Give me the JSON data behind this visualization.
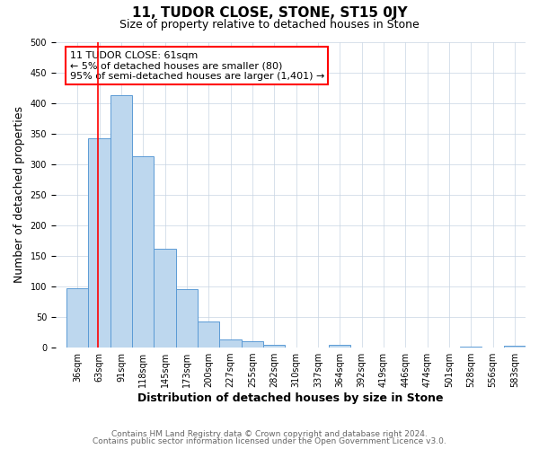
{
  "title": "11, TUDOR CLOSE, STONE, ST15 0JY",
  "subtitle": "Size of property relative to detached houses in Stone",
  "xlabel": "Distribution of detached houses by size in Stone",
  "ylabel": "Number of detached properties",
  "bar_values": [
    97,
    342,
    412,
    313,
    162,
    95,
    43,
    14,
    10,
    5,
    0,
    0,
    5,
    0,
    0,
    0,
    0,
    0,
    2,
    0,
    3
  ],
  "bar_labels": [
    "36sqm",
    "63sqm",
    "91sqm",
    "118sqm",
    "145sqm",
    "173sqm",
    "200sqm",
    "227sqm",
    "255sqm",
    "282sqm",
    "310sqm",
    "337sqm",
    "364sqm",
    "392sqm",
    "419sqm",
    "446sqm",
    "474sqm",
    "501sqm",
    "528sqm",
    "556sqm",
    "583sqm"
  ],
  "bar_color": "#bdd7ee",
  "bar_edge_color": "#5b9bd5",
  "property_line_x": 61,
  "property_line_color": "#ff0000",
  "annotation_text": "11 TUDOR CLOSE: 61sqm\n← 5% of detached houses are smaller (80)\n95% of semi-detached houses are larger (1,401) →",
  "annotation_box_color": "#ffffff",
  "annotation_box_edge": "#ff0000",
  "ylim": [
    0,
    500
  ],
  "yticks": [
    0,
    50,
    100,
    150,
    200,
    250,
    300,
    350,
    400,
    450,
    500
  ],
  "grid_color": "#c8d4e3",
  "bg_color": "#ffffff",
  "footer_line1": "Contains HM Land Registry data © Crown copyright and database right 2024.",
  "footer_line2": "Contains public sector information licensed under the Open Government Licence v3.0.",
  "title_fontsize": 11,
  "subtitle_fontsize": 9,
  "axis_label_fontsize": 9,
  "tick_fontsize": 7,
  "annotation_fontsize": 8,
  "footer_fontsize": 6.5
}
